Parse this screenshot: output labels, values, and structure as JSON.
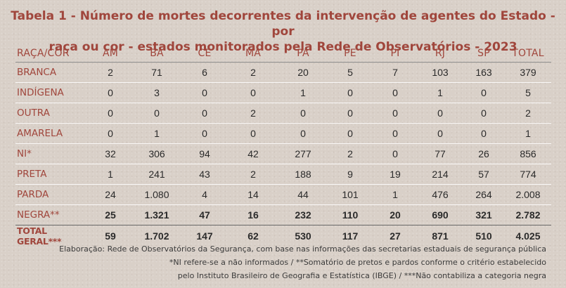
{
  "title": {
    "line1": "Tabela 1 - Número de mortes decorrentes da intervenção de agentes do Estado - por",
    "line2": "raça ou cor - estados monitorados pela Rede de Observatórios - 2023"
  },
  "table": {
    "headers": [
      "RAÇA/COR",
      "AM",
      "BA",
      "CE",
      "MA",
      "PA",
      "PE",
      "PI",
      "RJ",
      "SP",
      "TOTAL"
    ],
    "rows": [
      {
        "label": "BRANCA",
        "values": [
          "2",
          "71",
          "6",
          "2",
          "20",
          "5",
          "7",
          "103",
          "163",
          "379"
        ]
      },
      {
        "label": "INDÍGENA",
        "values": [
          "0",
          "3",
          "0",
          "0",
          "1",
          "0",
          "0",
          "1",
          "0",
          "5"
        ]
      },
      {
        "label": "OUTRA",
        "values": [
          "0",
          "0",
          "0",
          "2",
          "0",
          "0",
          "0",
          "0",
          "0",
          "2"
        ]
      },
      {
        "label": "AMARELA",
        "values": [
          "0",
          "1",
          "0",
          "0",
          "0",
          "0",
          "0",
          "0",
          "0",
          "1"
        ]
      },
      {
        "label": "NI*",
        "values": [
          "32",
          "306",
          "94",
          "42",
          "277",
          "2",
          "0",
          "77",
          "26",
          "856"
        ]
      },
      {
        "label": "PRETA",
        "values": [
          "1",
          "241",
          "43",
          "2",
          "188",
          "9",
          "19",
          "214",
          "57",
          "774"
        ]
      },
      {
        "label": "PARDA",
        "values": [
          "24",
          "1.080",
          "4",
          "14",
          "44",
          "101",
          "1",
          "476",
          "264",
          "2.008"
        ]
      },
      {
        "label": "NEGRA**",
        "values": [
          "25",
          "1.321",
          "47",
          "16",
          "232",
          "110",
          "20",
          "690",
          "321",
          "2.782"
        ]
      },
      {
        "label": "TOTAL GERAL***",
        "values": [
          "59",
          "1.702",
          "147",
          "62",
          "530",
          "117",
          "27",
          "871",
          "510",
          "4.025"
        ]
      }
    ]
  },
  "notes": {
    "line1": "Elaboração: Rede de Observatórios da Segurança, com base nas informações das secretarias estaduais de segurança pública",
    "line2": "*NI refere-se a não informados / **Somatório de pretos e pardos conforme o critério estabelecido",
    "line3": "pelo Instituto Brasileiro de Geografia e Estatística (IBGE) /  ***Não contabiliza a categoria negra"
  }
}
